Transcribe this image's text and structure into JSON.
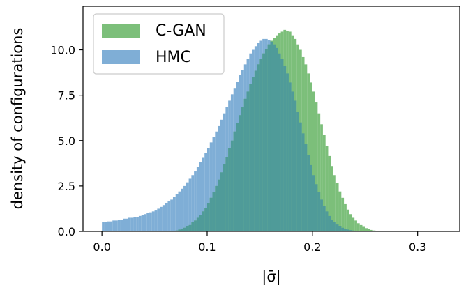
{
  "chart_data": {
    "type": "bar",
    "subtype": "overlapping-histogram",
    "title": "",
    "xlabel": "|σ̄|",
    "ylabel": "density of configurations",
    "xlim": [
      -0.018,
      0.34
    ],
    "ylim": [
      0,
      12.4
    ],
    "x_ticks": [
      0.0,
      0.1,
      0.2,
      0.3
    ],
    "x_tick_labels": [
      "0.0",
      "0.1",
      "0.2",
      "0.3"
    ],
    "y_ticks": [
      0.0,
      2.5,
      5.0,
      7.5,
      10.0
    ],
    "y_tick_labels": [
      "0.0",
      "2.5",
      "5.0",
      "7.5",
      "10.0"
    ],
    "grid": false,
    "legend_position": "top-left",
    "series": [
      {
        "name": "C-GAN",
        "color": "#7cbf7a",
        "bin_start": 0.0,
        "bin_width": 0.0025,
        "values": [
          0,
          0,
          0,
          0,
          0,
          0,
          0,
          0,
          0,
          0,
          0,
          0,
          0,
          0,
          0,
          0,
          0,
          0,
          0,
          0,
          0,
          0,
          0,
          0,
          0,
          0,
          0,
          0,
          0.05,
          0.1,
          0.15,
          0.2,
          0.3,
          0.35,
          0.5,
          0.6,
          0.75,
          0.9,
          1.1,
          1.3,
          1.55,
          1.85,
          2.15,
          2.5,
          2.85,
          3.25,
          3.7,
          4.1,
          4.6,
          5.0,
          5.5,
          5.95,
          6.4,
          6.85,
          7.3,
          7.7,
          8.1,
          8.5,
          8.85,
          9.2,
          9.5,
          9.8,
          10.05,
          10.3,
          10.5,
          10.65,
          10.8,
          10.9,
          11.0,
          11.1,
          11.05,
          11.0,
          10.8,
          10.6,
          10.3,
          10.0,
          9.6,
          9.2,
          8.7,
          8.2,
          7.7,
          7.1,
          6.5,
          5.9,
          5.3,
          4.7,
          4.15,
          3.6,
          3.1,
          2.65,
          2.2,
          1.85,
          1.5,
          1.2,
          0.95,
          0.75,
          0.6,
          0.45,
          0.35,
          0.25,
          0.18,
          0.12,
          0.08,
          0.05,
          0.03,
          0.02,
          0.01,
          0.01,
          0,
          0.02,
          0,
          0.01,
          0,
          0,
          0.01,
          0,
          0,
          0.01,
          0,
          0,
          0,
          0.01,
          0,
          0,
          0,
          0,
          0
        ]
      },
      {
        "name": "HMC",
        "color": "#7faed6",
        "bin_start": 0.0,
        "bin_width": 0.0025,
        "values": [
          0.5,
          0.5,
          0.55,
          0.55,
          0.6,
          0.6,
          0.65,
          0.65,
          0.7,
          0.7,
          0.75,
          0.75,
          0.8,
          0.8,
          0.85,
          0.9,
          0.95,
          1.0,
          1.05,
          1.1,
          1.15,
          1.25,
          1.35,
          1.45,
          1.55,
          1.65,
          1.75,
          1.9,
          2.05,
          2.2,
          2.35,
          2.5,
          2.7,
          2.9,
          3.1,
          3.3,
          3.55,
          3.8,
          4.05,
          4.3,
          4.6,
          4.9,
          5.2,
          5.5,
          5.8,
          6.15,
          6.5,
          6.85,
          7.2,
          7.55,
          7.9,
          8.25,
          8.6,
          8.9,
          9.2,
          9.5,
          9.8,
          10.0,
          10.2,
          10.4,
          10.5,
          10.6,
          10.6,
          10.55,
          10.45,
          10.3,
          10.1,
          9.8,
          9.5,
          9.1,
          8.7,
          8.2,
          7.7,
          7.2,
          6.6,
          6.0,
          5.4,
          4.8,
          4.2,
          3.65,
          3.1,
          2.6,
          2.15,
          1.75,
          1.4,
          1.1,
          0.85,
          0.65,
          0.5,
          0.38,
          0.28,
          0.2,
          0.14,
          0.1,
          0.07,
          0.05,
          0.03,
          0.02,
          0.01,
          0.01,
          0,
          0,
          0,
          0,
          0,
          0,
          0,
          0,
          0,
          0,
          0,
          0,
          0,
          0,
          0,
          0,
          0,
          0,
          0,
          0,
          0,
          0,
          0,
          0,
          0,
          0,
          0,
          0,
          0,
          0
        ]
      }
    ],
    "overlap_color": "#4f9b99"
  }
}
